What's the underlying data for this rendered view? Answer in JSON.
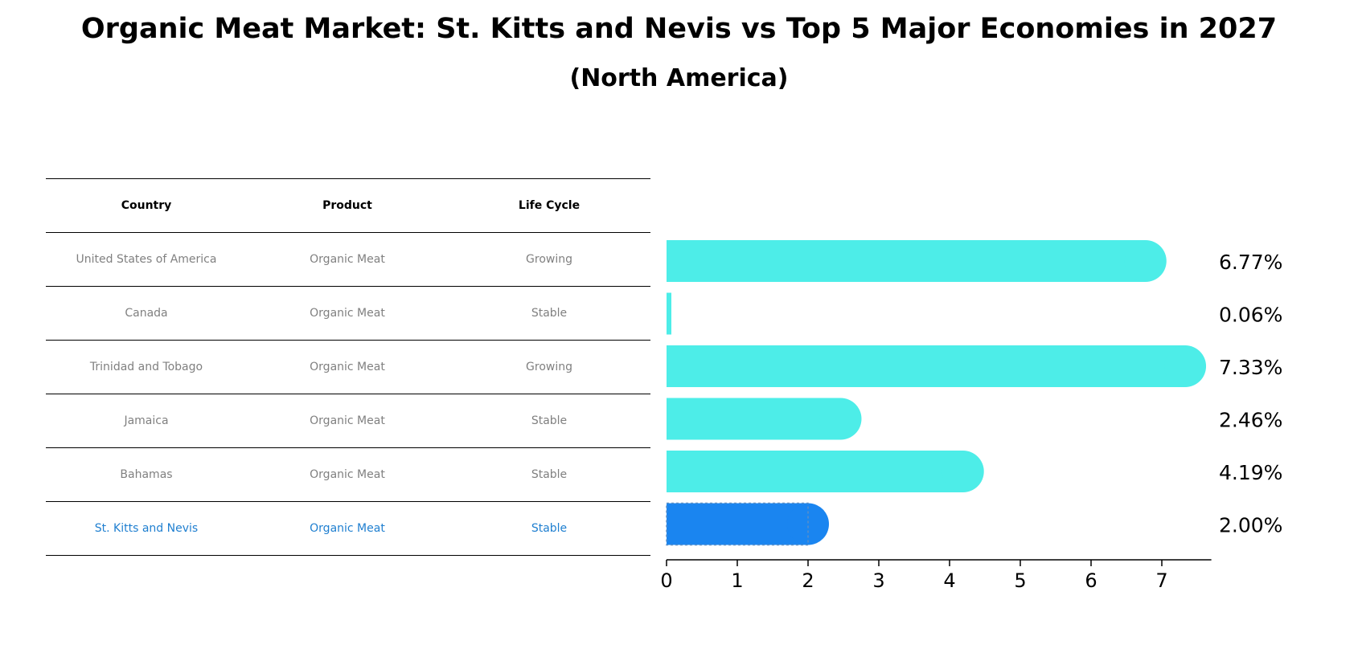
{
  "title": "Organic Meat Market: St. Kitts and Nevis vs Top 5 Major Economies in 2027",
  "subtitle": "(North America)",
  "colors": {
    "bar": "#4dede8",
    "highlight_bar": "#1a85f0",
    "highlight_text": "#1f7fd0",
    "table_text": "#808080"
  },
  "table": {
    "headers": [
      "Country",
      "Product",
      "Life Cycle"
    ],
    "rows": [
      [
        "United States of America",
        "Organic Meat",
        "Growing"
      ],
      [
        "Canada",
        "Organic Meat",
        "Stable"
      ],
      [
        "Trinidad and Tobago",
        "Organic Meat",
        "Growing"
      ],
      [
        "Jamaica",
        "Organic Meat",
        "Stable"
      ],
      [
        "Bahamas",
        "Organic Meat",
        "Stable"
      ],
      [
        "St. Kitts and Nevis",
        "Organic Meat",
        "Stable"
      ]
    ]
  },
  "chart_data": {
    "type": "bar",
    "orientation": "horizontal",
    "categories": [
      "United States of America",
      "Canada",
      "Trinidad and Tobago",
      "Jamaica",
      "Bahamas",
      "St. Kitts and Nevis"
    ],
    "values": [
      6.77,
      0.06,
      7.33,
      2.46,
      4.19,
      2.0
    ],
    "value_labels": [
      "6.77%",
      "0.06%",
      "7.33%",
      "2.46%",
      "4.19%",
      "2.00%"
    ],
    "highlight_index": 5,
    "xlim": [
      0,
      7.7
    ],
    "xticks": [
      0,
      1,
      2,
      3,
      4,
      5,
      6,
      7
    ],
    "xlabel": "",
    "ylabel": ""
  }
}
